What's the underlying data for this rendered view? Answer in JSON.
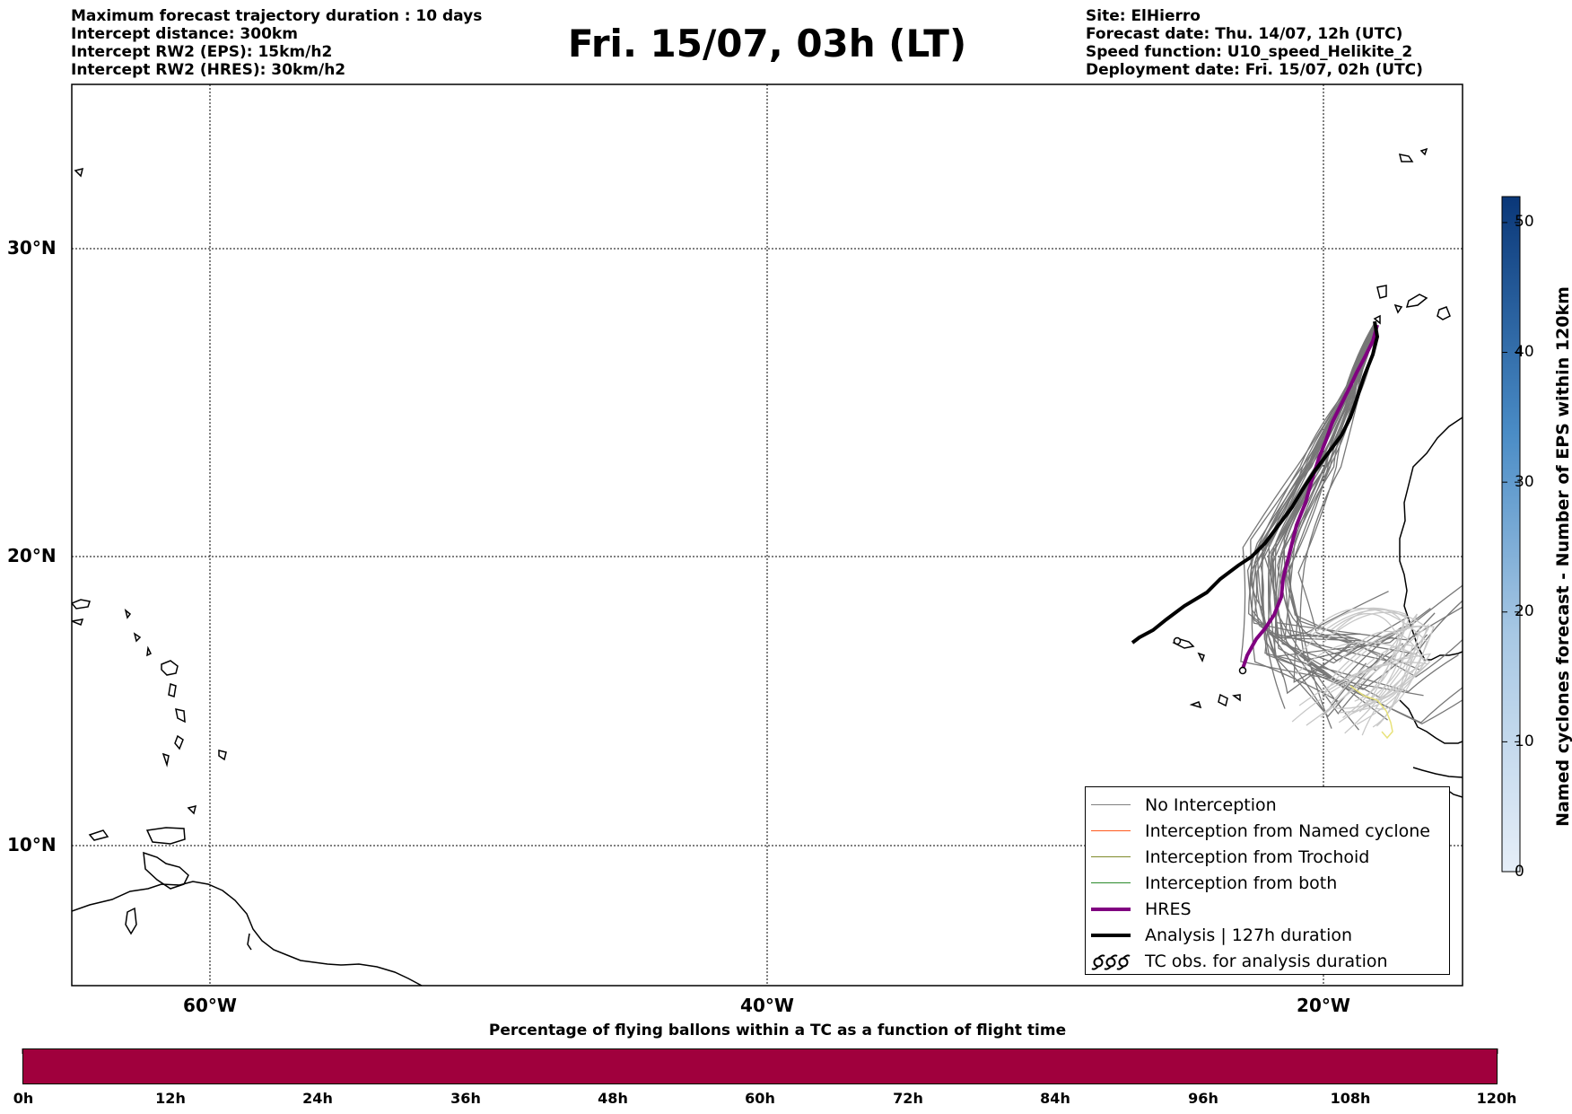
{
  "info_left": {
    "line1": "Maximum forecast trajectory duration : 10 days",
    "line2": "Intercept distance: 300km",
    "line3": "Intercept RW2 (EPS):  15km/h2",
    "line4": "Intercept RW2 (HRES): 30km/h2"
  },
  "title": "Fri. 15/07, 03h (LT)",
  "info_right": {
    "line1": "Site: ElHierro",
    "line2": "Forecast date: Thu. 14/07, 12h (UTC)",
    "line3": "Speed function: U10_speed_Helikite_2",
    "line4": "Deployment date: Fri. 15/07, 02h (UTC)"
  },
  "map": {
    "lon_range": [
      -65,
      15
    ],
    "lat_range": [
      5,
      35
    ],
    "lat_labels": [
      "30°N",
      "20°N",
      "10°N"
    ],
    "lon_labels": [
      "60°W",
      "40°W",
      "20°W"
    ],
    "gridlines": "dotted"
  },
  "legend": {
    "entries": [
      {
        "label": "No Interception",
        "color": "#808080",
        "style": "thin-line"
      },
      {
        "label": "Interception from Named cyclone",
        "color": "#ff5a1e",
        "style": "thin-line"
      },
      {
        "label": "Interception from Trochoid",
        "color": "#7f8a2a",
        "style": "thin-line"
      },
      {
        "label": "Interception from both",
        "color": "#2a8a2a",
        "style": "thin-line"
      },
      {
        "label": "HRES",
        "color": "#800080",
        "style": "thick-line"
      },
      {
        "label": "Analysis | 127h duration",
        "color": "#000000",
        "style": "thick-line"
      },
      {
        "label": "TC obs. for analysis duration",
        "color": "#000000",
        "style": "cyclone-symbols"
      }
    ]
  },
  "colorbar_right": {
    "title": "Named cyclones forecast - Number of EPS within 120km",
    "ticks": [
      "0",
      "10",
      "20",
      "30",
      "40",
      "50"
    ],
    "range": [
      0,
      52
    ],
    "color_low": "#e6eef8",
    "color_high": "#0a3778"
  },
  "colorbar_bottom": {
    "title": "Percentage of flying ballons within a TC as a function of flight time",
    "ticks": [
      "0h",
      "12h",
      "24h",
      "36h",
      "48h",
      "60h",
      "72h",
      "84h",
      "96h",
      "108h",
      "120h"
    ],
    "color": "#a0003d"
  }
}
